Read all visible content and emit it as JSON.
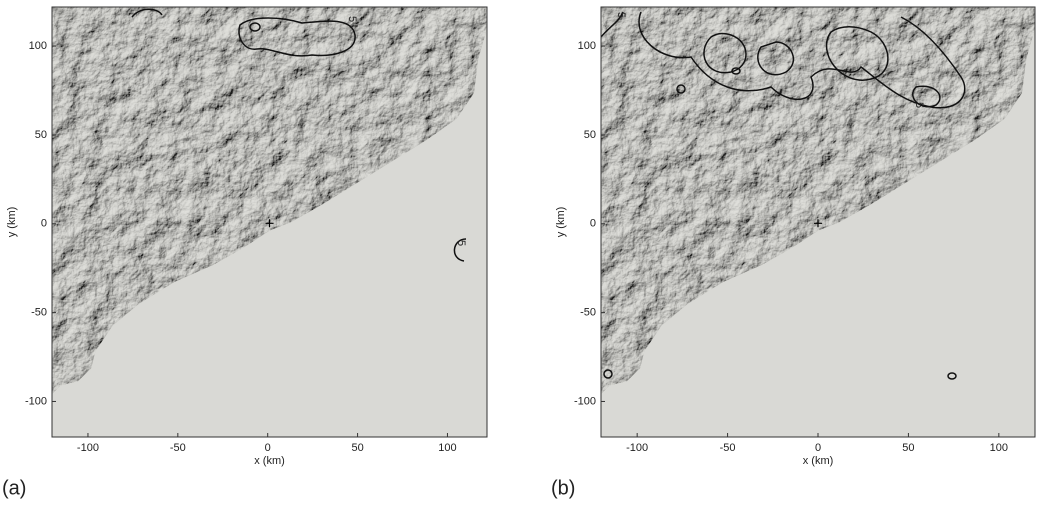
{
  "chart_data": [
    {
      "type": "map",
      "label": "(a)",
      "xlabel": "x (km)",
      "ylabel": "y (km)",
      "xlim": [
        -120,
        122
      ],
      "ylim": [
        -120,
        122
      ],
      "xticks": [
        -100,
        -50,
        0,
        50,
        100
      ],
      "yticks": [
        -100,
        -50,
        0,
        50,
        100
      ],
      "annotations": [
        "5",
        "5"
      ]
    },
    {
      "type": "map",
      "label": "(b)",
      "xlabel": "x (km)",
      "ylabel": "y (km)",
      "xlim": [
        -120,
        120
      ],
      "ylim": [
        -120,
        122
      ],
      "xticks": [
        -100,
        -50,
        0,
        50,
        100
      ],
      "yticks": [
        -100,
        -50,
        0,
        50,
        100
      ],
      "annotations": [
        "5",
        "5"
      ]
    }
  ]
}
